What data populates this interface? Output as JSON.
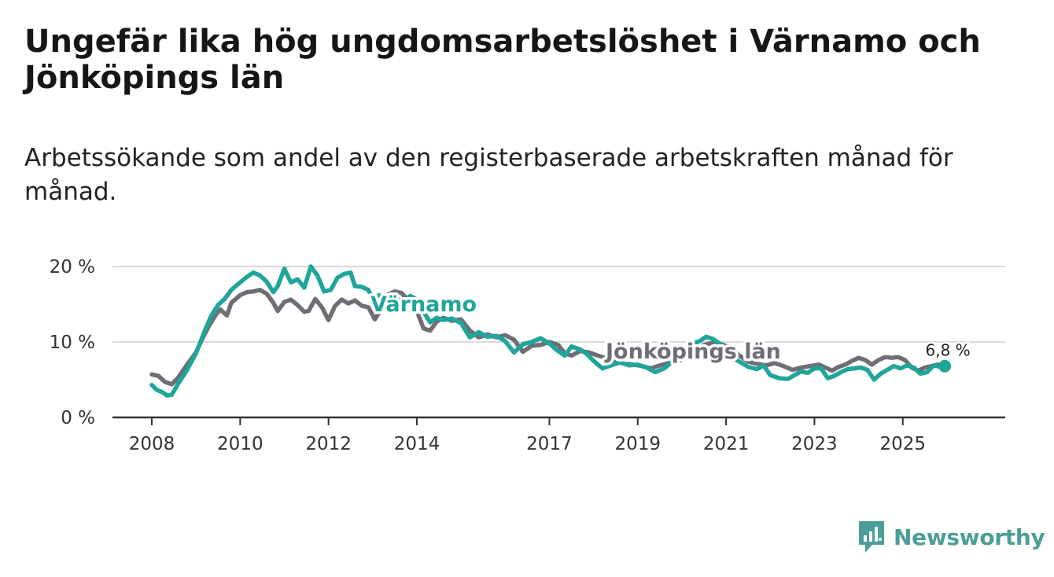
{
  "title": "Ungefär lika hög ungdomsarbetslöshet i Värnamo och Jönköpings län",
  "subtitle": "Arbetssökande som andel av den registerbaserade arbetskraften månad för månad.",
  "brand": {
    "name": "Newsworthy",
    "color": "#4a9e97"
  },
  "chart_data": {
    "type": "line",
    "title": "Ungefär lika hög ungdomsarbetslöshet i Värnamo och Jönköpings län",
    "xlabel": "",
    "ylabel": "",
    "xlim": [
      2008.0,
      2026.5
    ],
    "ylim": [
      0,
      20
    ],
    "grid": true,
    "y_ticks": [
      0,
      10,
      20
    ],
    "y_tick_labels": [
      "0 %",
      "10 %",
      "20 %"
    ],
    "x_ticks": [
      2008,
      2010,
      2012,
      2014,
      2017,
      2019,
      2021,
      2023,
      2025
    ],
    "x_tick_labels": [
      "2008",
      "2010",
      "2012",
      "2014",
      "2017",
      "2019",
      "2021",
      "2023",
      "2025"
    ],
    "series": [
      {
        "name": "Jönköpings län",
        "label": "Jönköpings län",
        "color": "#6f6e76",
        "points": [
          [
            2008.0,
            5.7
          ],
          [
            2008.15,
            5.5
          ],
          [
            2008.3,
            4.7
          ],
          [
            2008.45,
            4.4
          ],
          [
            2008.6,
            5.3
          ],
          [
            2008.8,
            7.0
          ],
          [
            2009.0,
            8.6
          ],
          [
            2009.15,
            10.5
          ],
          [
            2009.3,
            12.2
          ],
          [
            2009.45,
            13.6
          ],
          [
            2009.55,
            14.3
          ],
          [
            2009.7,
            13.5
          ],
          [
            2009.8,
            15.2
          ],
          [
            2010.0,
            16.2
          ],
          [
            2010.15,
            16.6
          ],
          [
            2010.3,
            16.7
          ],
          [
            2010.45,
            16.9
          ],
          [
            2010.6,
            16.4
          ],
          [
            2010.75,
            15.2
          ],
          [
            2010.85,
            14.1
          ],
          [
            2011.0,
            15.3
          ],
          [
            2011.15,
            15.6
          ],
          [
            2011.3,
            14.9
          ],
          [
            2011.45,
            14.0
          ],
          [
            2011.55,
            14.1
          ],
          [
            2011.7,
            15.7
          ],
          [
            2011.85,
            14.6
          ],
          [
            2012.0,
            12.9
          ],
          [
            2012.15,
            14.8
          ],
          [
            2012.3,
            15.6
          ],
          [
            2012.45,
            15.1
          ],
          [
            2012.6,
            15.5
          ],
          [
            2012.75,
            14.8
          ],
          [
            2012.9,
            14.6
          ],
          [
            2013.05,
            13.0
          ],
          [
            2013.2,
            14.4
          ],
          [
            2013.35,
            16.3
          ],
          [
            2013.5,
            16.7
          ],
          [
            2013.65,
            16.5
          ],
          [
            2013.8,
            15.6
          ],
          [
            2014.0,
            14.1
          ],
          [
            2014.15,
            11.8
          ],
          [
            2014.3,
            11.5
          ],
          [
            2014.45,
            12.7
          ],
          [
            2014.6,
            13.2
          ],
          [
            2014.8,
            12.8
          ],
          [
            2015.0,
            13.0
          ],
          [
            2015.2,
            11.5
          ],
          [
            2015.4,
            10.6
          ],
          [
            2015.6,
            11.0
          ],
          [
            2015.8,
            10.6
          ],
          [
            2016.0,
            10.9
          ],
          [
            2016.2,
            10.3
          ],
          [
            2016.4,
            8.7
          ],
          [
            2016.6,
            9.5
          ],
          [
            2016.8,
            9.6
          ],
          [
            2017.0,
            10.0
          ],
          [
            2017.2,
            9.6
          ],
          [
            2017.35,
            8.5
          ],
          [
            2017.5,
            8.2
          ],
          [
            2017.7,
            8.8
          ],
          [
            2017.9,
            8.6
          ],
          [
            2018.1,
            8.2
          ],
          [
            2018.3,
            7.8
          ],
          [
            2018.5,
            7.4
          ],
          [
            2018.7,
            7.1
          ],
          [
            2018.9,
            7.0
          ],
          [
            2019.1,
            6.8
          ],
          [
            2019.3,
            6.5
          ],
          [
            2019.5,
            6.9
          ],
          [
            2019.7,
            7.2
          ],
          [
            2019.9,
            7.4
          ],
          [
            2020.1,
            8.0
          ],
          [
            2020.3,
            9.0
          ],
          [
            2020.5,
            9.6
          ],
          [
            2020.7,
            9.9
          ],
          [
            2020.9,
            9.7
          ],
          [
            2021.1,
            9.2
          ],
          [
            2021.3,
            8.2
          ],
          [
            2021.5,
            7.4
          ],
          [
            2021.7,
            7.1
          ],
          [
            2021.9,
            6.9
          ],
          [
            2022.1,
            7.2
          ],
          [
            2022.3,
            6.8
          ],
          [
            2022.5,
            6.3
          ],
          [
            2022.7,
            6.6
          ],
          [
            2022.9,
            6.8
          ],
          [
            2023.1,
            7.0
          ],
          [
            2023.25,
            6.6
          ],
          [
            2023.4,
            6.2
          ],
          [
            2023.55,
            6.7
          ],
          [
            2023.7,
            7.0
          ],
          [
            2023.85,
            7.5
          ],
          [
            2024.0,
            7.9
          ],
          [
            2024.15,
            7.6
          ],
          [
            2024.3,
            7.0
          ],
          [
            2024.45,
            7.6
          ],
          [
            2024.6,
            8.0
          ],
          [
            2024.75,
            7.9
          ],
          [
            2024.9,
            8.0
          ],
          [
            2025.05,
            7.6
          ],
          [
            2025.2,
            6.6
          ],
          [
            2025.35,
            6.2
          ],
          [
            2025.5,
            6.6
          ],
          [
            2025.65,
            6.8
          ],
          [
            2025.8,
            7.0
          ],
          [
            2025.9,
            6.8
          ]
        ]
      },
      {
        "name": "Värnamo",
        "label": "Värnamo",
        "color": "#1fa59a",
        "end_label": "6,8 %",
        "points": [
          [
            2008.0,
            4.3
          ],
          [
            2008.1,
            3.7
          ],
          [
            2008.25,
            3.3
          ],
          [
            2008.35,
            2.9
          ],
          [
            2008.45,
            3.0
          ],
          [
            2008.6,
            4.5
          ],
          [
            2008.8,
            6.3
          ],
          [
            2009.0,
            8.5
          ],
          [
            2009.2,
            11.5
          ],
          [
            2009.35,
            13.5
          ],
          [
            2009.5,
            14.9
          ],
          [
            2009.65,
            15.7
          ],
          [
            2009.8,
            16.9
          ],
          [
            2010.0,
            17.9
          ],
          [
            2010.15,
            18.6
          ],
          [
            2010.3,
            19.2
          ],
          [
            2010.45,
            18.8
          ],
          [
            2010.6,
            18.0
          ],
          [
            2010.75,
            16.6
          ],
          [
            2010.85,
            17.4
          ],
          [
            2011.0,
            19.7
          ],
          [
            2011.15,
            17.9
          ],
          [
            2011.3,
            18.3
          ],
          [
            2011.45,
            17.2
          ],
          [
            2011.6,
            20.0
          ],
          [
            2011.75,
            18.8
          ],
          [
            2011.9,
            16.7
          ],
          [
            2012.05,
            16.9
          ],
          [
            2012.2,
            18.5
          ],
          [
            2012.35,
            19.0
          ],
          [
            2012.5,
            19.2
          ],
          [
            2012.6,
            17.4
          ],
          [
            2012.75,
            17.3
          ],
          [
            2012.9,
            16.9
          ],
          [
            2013.0,
            15.8
          ],
          [
            2013.15,
            16.2
          ],
          [
            2013.3,
            15.3
          ],
          [
            2013.5,
            15.8
          ],
          [
            2013.7,
            15.4
          ],
          [
            2013.85,
            16.1
          ],
          [
            2014.0,
            15.6
          ],
          [
            2014.15,
            14.0
          ],
          [
            2014.3,
            12.6
          ],
          [
            2014.45,
            13.2
          ],
          [
            2014.6,
            12.9
          ],
          [
            2014.8,
            13.1
          ],
          [
            2015.0,
            12.5
          ],
          [
            2015.2,
            10.6
          ],
          [
            2015.4,
            11.3
          ],
          [
            2015.6,
            10.7
          ],
          [
            2015.8,
            10.8
          ],
          [
            2016.0,
            10.1
          ],
          [
            2016.2,
            8.6
          ],
          [
            2016.4,
            9.7
          ],
          [
            2016.6,
            10.0
          ],
          [
            2016.8,
            10.5
          ],
          [
            2017.0,
            9.8
          ],
          [
            2017.15,
            9.0
          ],
          [
            2017.35,
            8.2
          ],
          [
            2017.5,
            9.4
          ],
          [
            2017.7,
            9.0
          ],
          [
            2017.85,
            8.4
          ],
          [
            2018.0,
            7.5
          ],
          [
            2018.2,
            6.5
          ],
          [
            2018.4,
            6.9
          ],
          [
            2018.6,
            7.3
          ],
          [
            2018.8,
            6.9
          ],
          [
            2019.0,
            7.0
          ],
          [
            2019.2,
            6.6
          ],
          [
            2019.4,
            6.0
          ],
          [
            2019.6,
            6.5
          ],
          [
            2019.8,
            7.5
          ],
          [
            2020.0,
            8.6
          ],
          [
            2020.2,
            9.7
          ],
          [
            2020.4,
            10.1
          ],
          [
            2020.55,
            10.7
          ],
          [
            2020.7,
            10.4
          ],
          [
            2020.9,
            9.6
          ],
          [
            2021.1,
            8.1
          ],
          [
            2021.3,
            7.4
          ],
          [
            2021.5,
            6.7
          ],
          [
            2021.7,
            6.4
          ],
          [
            2021.85,
            6.9
          ],
          [
            2022.0,
            5.6
          ],
          [
            2022.2,
            5.2
          ],
          [
            2022.4,
            5.1
          ],
          [
            2022.55,
            5.6
          ],
          [
            2022.7,
            6.1
          ],
          [
            2022.85,
            5.9
          ],
          [
            2023.0,
            6.5
          ],
          [
            2023.15,
            6.5
          ],
          [
            2023.3,
            5.2
          ],
          [
            2023.45,
            5.5
          ],
          [
            2023.6,
            6.0
          ],
          [
            2023.75,
            6.4
          ],
          [
            2023.9,
            6.5
          ],
          [
            2024.05,
            6.6
          ],
          [
            2024.2,
            6.3
          ],
          [
            2024.35,
            5.0
          ],
          [
            2024.5,
            5.8
          ],
          [
            2024.65,
            6.3
          ],
          [
            2024.8,
            6.8
          ],
          [
            2024.95,
            6.5
          ],
          [
            2025.1,
            6.9
          ],
          [
            2025.25,
            6.6
          ],
          [
            2025.4,
            5.8
          ],
          [
            2025.55,
            6.0
          ],
          [
            2025.7,
            6.9
          ],
          [
            2025.85,
            6.7
          ],
          [
            2025.95,
            6.8
          ]
        ]
      }
    ]
  }
}
